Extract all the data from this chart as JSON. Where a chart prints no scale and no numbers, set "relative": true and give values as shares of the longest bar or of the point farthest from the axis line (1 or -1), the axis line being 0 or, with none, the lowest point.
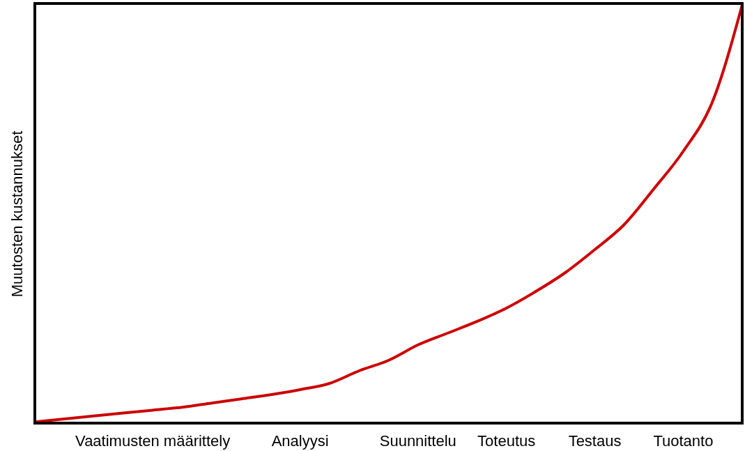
{
  "chart_data": {
    "type": "line",
    "ylabel": "Muutosten kustannukset",
    "relative": true,
    "categories": [
      null,
      null,
      null,
      null,
      "Vaatimusten määrittely",
      null,
      null,
      null,
      null,
      "Analyysi",
      null,
      null,
      null,
      "Suunnittelu",
      null,
      null,
      "Toteutus",
      null,
      null,
      "Testaus",
      null,
      null,
      "Tuotanto",
      null,
      null
    ],
    "series": [
      {
        "color": "#cc0000",
        "values": [
          0.003,
          0.01,
          0.017,
          0.024,
          0.031,
          0.038,
          0.048,
          0.058,
          0.068,
          0.08,
          0.095,
          0.125,
          0.15,
          0.187,
          0.215,
          0.243,
          0.275,
          0.315,
          0.36,
          0.415,
          0.475,
          0.56,
          0.65,
          0.77,
          1
        ]
      }
    ]
  }
}
